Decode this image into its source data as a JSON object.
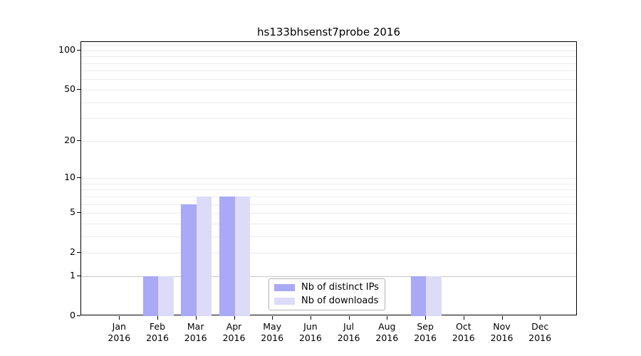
{
  "figure": {
    "title": "hs133bhsenst7probe 2016"
  },
  "chart_data": {
    "type": "bar",
    "title": "hs133bhsenst7probe 2016",
    "categories": [
      "Jan",
      "Feb",
      "Mar",
      "Apr",
      "May",
      "Jun",
      "Jul",
      "Aug",
      "Sep",
      "Oct",
      "Nov",
      "Dec"
    ],
    "x_tick_second_line": "2016",
    "series": [
      {
        "name": "Nb of distinct IPs",
        "color": "#a9a9f5",
        "values": [
          0,
          1,
          6,
          7,
          0,
          0,
          0,
          0,
          1,
          0,
          0,
          0
        ]
      },
      {
        "name": "Nb of downloads",
        "color": "#dcdcf8",
        "values": [
          0,
          1,
          7,
          7,
          0,
          0,
          0,
          0,
          1,
          0,
          0,
          0
        ]
      }
    ],
    "yscale": "log1p",
    "ylim": [
      0,
      117
    ],
    "y_tick_values": [
      0,
      1,
      2,
      5,
      10,
      20,
      50,
      100
    ],
    "grid_values": [
      1,
      2,
      3,
      4,
      5,
      6,
      7,
      8,
      9,
      10,
      20,
      30,
      40,
      50,
      60,
      70,
      80,
      90,
      100,
      110
    ],
    "grid": true,
    "legend_position": "bottom-center"
  },
  "colors": {
    "bar_distinct_ips": "#a9a9f5",
    "bar_downloads": "#dcdcf8",
    "grid_minor": "#ebebeb",
    "grid_unit_line": "#c8c8c8",
    "spine": "#000000",
    "legend_border": "#b3b3b3",
    "background": "#ffffff",
    "text": "#000000"
  }
}
